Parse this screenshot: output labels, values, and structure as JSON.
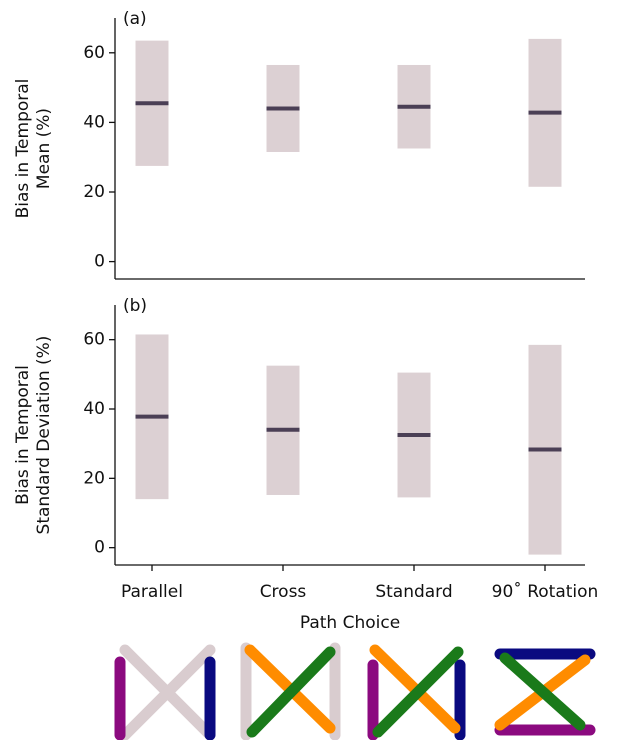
{
  "chart_data": [
    {
      "type": "range",
      "panel_label": "(a)",
      "ylabel": [
        "Bias in Temporal",
        "Mean (%)"
      ],
      "low": [
        27.5,
        31.5,
        32.5,
        21.5
      ],
      "high": [
        63.5,
        56.5,
        56.5,
        64
      ],
      "values": [
        45.5,
        44,
        44.5,
        42.8
      ],
      "ylim": [
        -5,
        70
      ],
      "yticks": [
        0,
        20,
        40,
        60
      ],
      "color": "#dcd0d3",
      "mean_color": "#4b3f55"
    },
    {
      "type": "range",
      "panel_label": "(b)",
      "ylabel": [
        "Bias in Temporal",
        "Standard Deviation (%)"
      ],
      "categories": [
        "Parallel",
        "Cross",
        "Standard",
        "90˚ Rotation"
      ],
      "xlabel": "Path Choice",
      "low": [
        14,
        15.2,
        14.5,
        -2
      ],
      "high": [
        61.5,
        52.5,
        50.5,
        58.5
      ],
      "values": [
        37.8,
        34,
        32.5,
        28.3
      ],
      "ylim": [
        -5,
        70
      ],
      "yticks": [
        0,
        20,
        40,
        60
      ],
      "color": "#dcd0d3",
      "mean_color": "#4b3f55"
    }
  ]
}
